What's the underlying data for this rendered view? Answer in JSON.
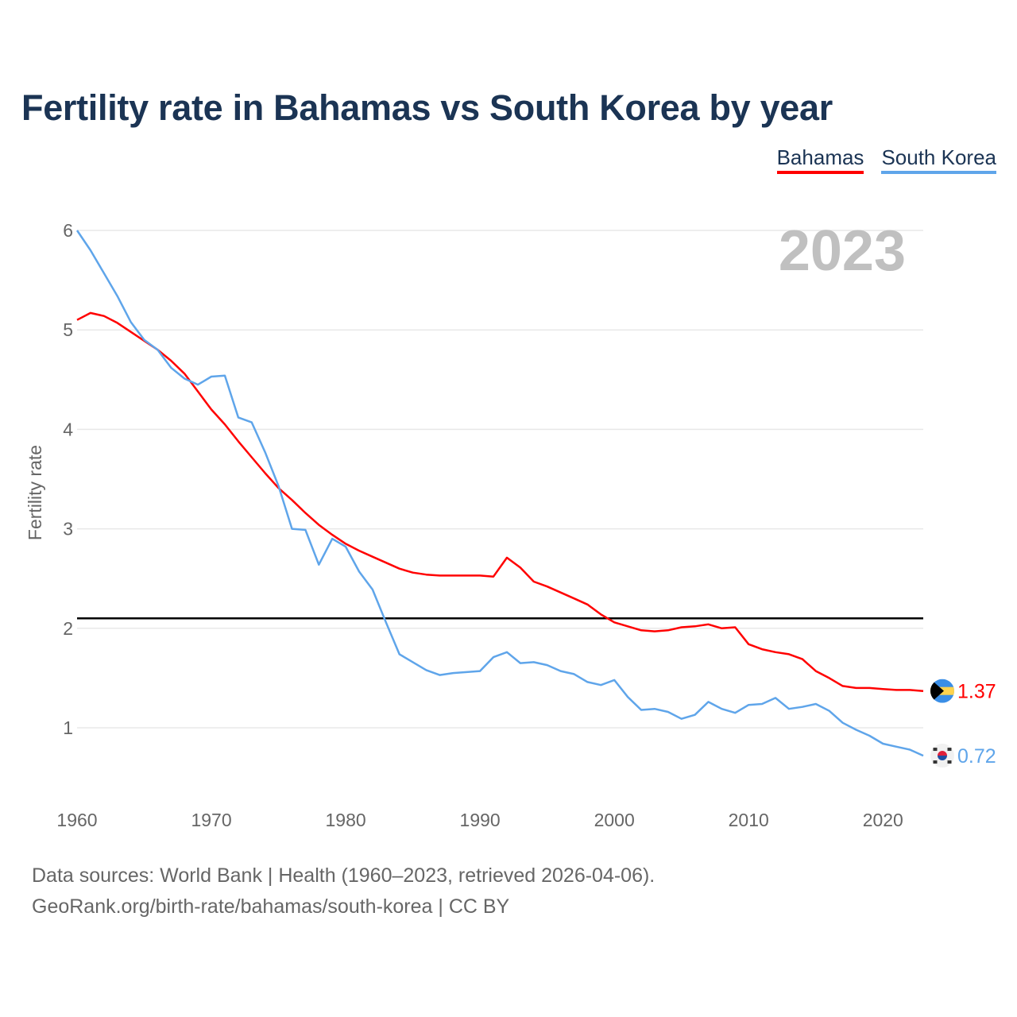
{
  "chart_data": {
    "type": "line",
    "title": "Fertility rate in Bahamas vs South Korea by year",
    "xlabel": "",
    "ylabel": "Fertility rate",
    "xlim": [
      1960,
      2023
    ],
    "ylim": [
      0.5,
      6
    ],
    "x_ticks": [
      1960,
      1970,
      1980,
      1990,
      2000,
      2010,
      2020
    ],
    "y_ticks": [
      1,
      2,
      3,
      4,
      5,
      6
    ],
    "grid": true,
    "legend_position": "top-right",
    "year_watermark": "2023",
    "reference_line": 2.1,
    "x_start": 1960,
    "series": [
      {
        "name": "Bahamas",
        "color": "#ff0000",
        "end_label": "1.37",
        "flag": "bahamas-flag",
        "values": [
          5.1,
          5.17,
          5.14,
          5.07,
          4.98,
          4.89,
          4.8,
          4.69,
          4.56,
          4.38,
          4.2,
          4.05,
          3.88,
          3.72,
          3.56,
          3.41,
          3.29,
          3.16,
          3.04,
          2.94,
          2.85,
          2.78,
          2.72,
          2.66,
          2.6,
          2.56,
          2.54,
          2.53,
          2.53,
          2.53,
          2.53,
          2.52,
          2.71,
          2.61,
          2.47,
          2.42,
          2.36,
          2.3,
          2.24,
          2.14,
          2.06,
          2.02,
          1.98,
          1.97,
          1.98,
          2.01,
          2.02,
          2.04,
          2.0,
          2.01,
          1.84,
          1.79,
          1.76,
          1.74,
          1.69,
          1.57,
          1.5,
          1.42,
          1.4,
          1.4,
          1.39,
          1.38,
          1.38,
          1.37
        ]
      },
      {
        "name": "South Korea",
        "color": "#5fa5ea",
        "end_label": "0.72",
        "flag": "south-korea-flag",
        "values": [
          6.0,
          5.8,
          5.57,
          5.34,
          5.08,
          4.9,
          4.8,
          4.62,
          4.51,
          4.45,
          4.53,
          4.54,
          4.12,
          4.07,
          3.77,
          3.43,
          3.0,
          2.99,
          2.64,
          2.9,
          2.82,
          2.57,
          2.39,
          2.06,
          1.74,
          1.66,
          1.58,
          1.53,
          1.55,
          1.56,
          1.57,
          1.71,
          1.76,
          1.65,
          1.66,
          1.63,
          1.57,
          1.54,
          1.46,
          1.43,
          1.48,
          1.31,
          1.18,
          1.19,
          1.16,
          1.09,
          1.13,
          1.26,
          1.19,
          1.15,
          1.23,
          1.24,
          1.3,
          1.19,
          1.21,
          1.24,
          1.17,
          1.05,
          0.98,
          0.92,
          0.84,
          0.81,
          0.78,
          0.72
        ]
      }
    ]
  },
  "footer": {
    "line1": "Data sources: World Bank | Health (1960–2023, retrieved 2026-04-06).",
    "line2": "GeoRank.org/birth-rate/bahamas/south-korea | CC BY"
  }
}
